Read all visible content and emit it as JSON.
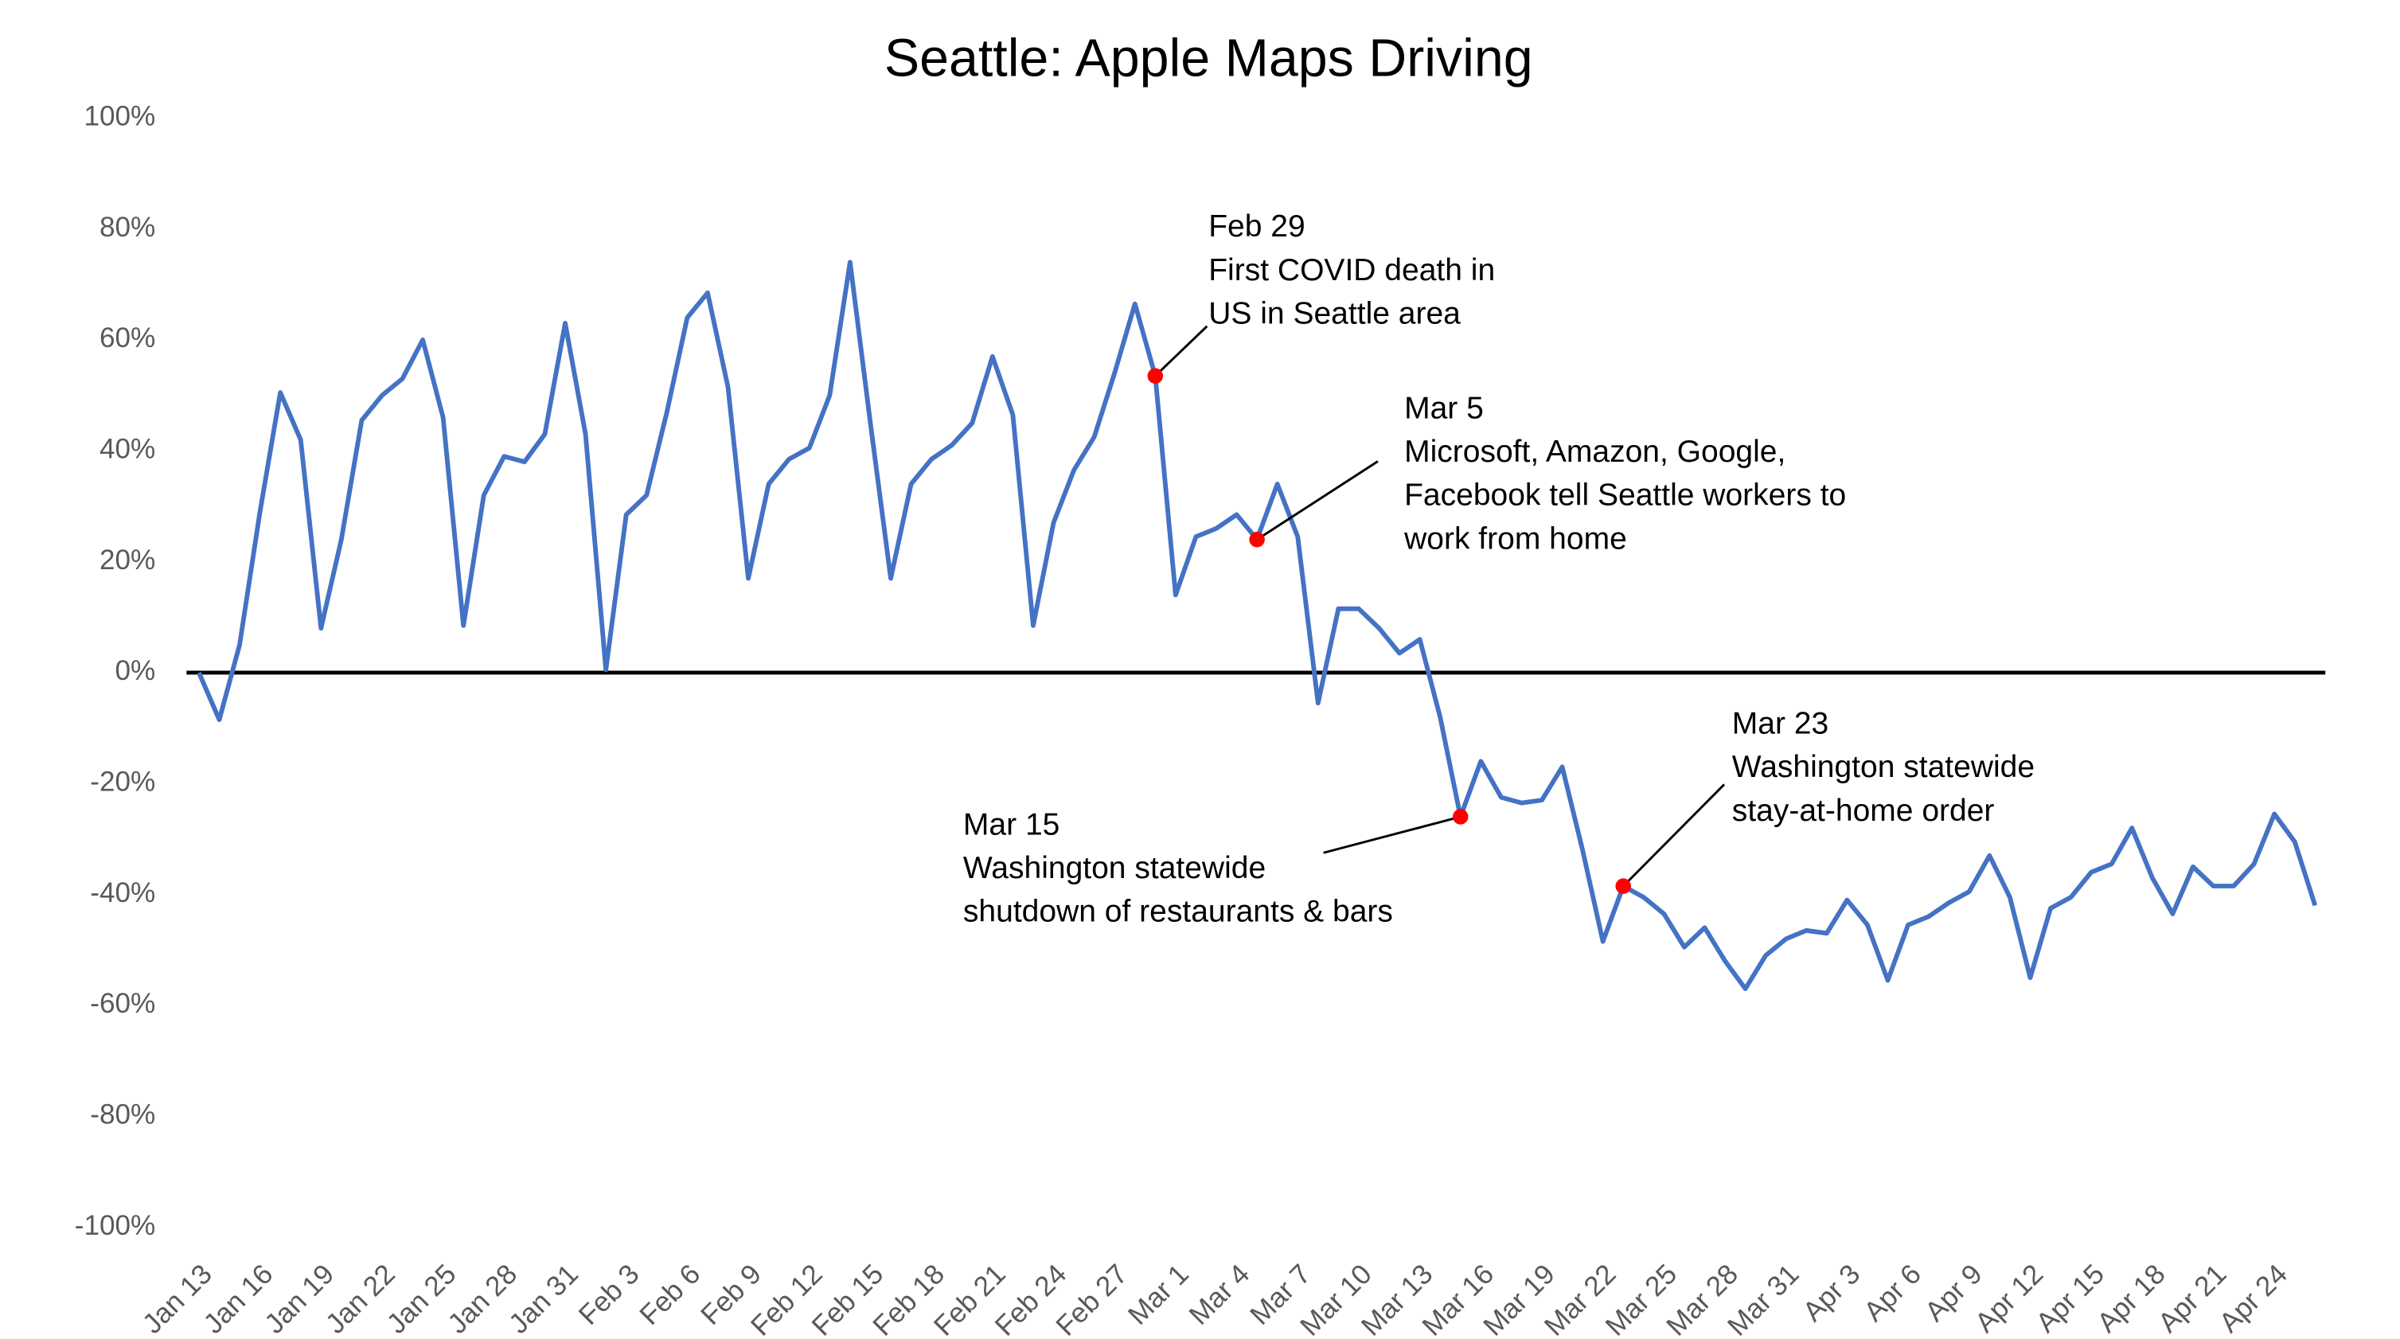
{
  "chart_data": {
    "type": "line",
    "title": "Seattle: Apple Maps Driving",
    "categories": [
      "Jan 13",
      null,
      null,
      "Jan 16",
      null,
      null,
      "Jan 19",
      null,
      null,
      "Jan 22",
      null,
      null,
      "Jan 25",
      null,
      null,
      "Jan 28",
      null,
      null,
      "Jan 31",
      null,
      null,
      "Feb 3",
      null,
      null,
      "Feb 6",
      null,
      null,
      "Feb 9",
      null,
      null,
      "Feb 12",
      null,
      null,
      "Feb 15",
      null,
      null,
      "Feb 18",
      null,
      null,
      "Feb 21",
      null,
      null,
      "Feb 24",
      null,
      null,
      "Feb 27",
      null,
      null,
      "Mar 1",
      null,
      null,
      "Mar 4",
      null,
      null,
      "Mar 7",
      null,
      null,
      "Mar 10",
      null,
      null,
      "Mar 13",
      null,
      null,
      "Mar 16",
      null,
      null,
      "Mar 19",
      null,
      null,
      "Mar 22",
      null,
      null,
      "Mar 25",
      null,
      null,
      "Mar 28",
      null,
      null,
      "Mar 31",
      null,
      null,
      "Apr 3",
      null,
      null,
      "Apr 6",
      null,
      null,
      "Apr 9",
      null,
      null,
      "Apr 12",
      null,
      null,
      "Apr 15",
      null,
      null,
      "Apr 18",
      null,
      null,
      "Apr 21",
      null,
      null,
      "Apr 24",
      null,
      null
    ],
    "values": [
      0,
      -8.5,
      5,
      29,
      50.5,
      42,
      8,
      24,
      45.5,
      50,
      53,
      60,
      46,
      8.5,
      32,
      39,
      38,
      43,
      63,
      43,
      0.5,
      28.5,
      32,
      47,
      64,
      68.5,
      51.5,
      17,
      34,
      38.5,
      40.5,
      50,
      74,
      45,
      17,
      34,
      38.5,
      41,
      45,
      57,
      46.5,
      8.5,
      27,
      36.5,
      42.5,
      54,
      66.5,
      53.5,
      14,
      24.5,
      26,
      28.5,
      24,
      34,
      24.5,
      -5.5,
      11.5,
      11.5,
      8,
      3.5,
      6,
      -8,
      -26,
      -16,
      -22.5,
      -23.5,
      -23,
      -17,
      -32,
      -48.5,
      -38.5,
      -40.5,
      -43.5,
      -49.5,
      -46,
      -52,
      -57,
      -51,
      -48,
      -46.5,
      -47,
      -41,
      -45.5,
      -55.5,
      -45.5,
      -44,
      -41.5,
      -39.5,
      -33,
      -40.5,
      -55,
      -42.5,
      -40.5,
      -36,
      -34.5,
      -28,
      -37,
      -43.5,
      -35,
      -38.5,
      -38.5,
      -34.5,
      -25.5,
      -30.5,
      -42
    ],
    "color": "#4472c4",
    "ylim": [
      -100,
      100
    ],
    "yticks": [
      {
        "value": -100,
        "label": "-100%"
      },
      {
        "value": -80,
        "label": "-80%"
      },
      {
        "value": -60,
        "label": "-60%"
      },
      {
        "value": -40,
        "label": "-40%"
      },
      {
        "value": -20,
        "label": "-20%"
      },
      {
        "value": 0,
        "label": "0%"
      },
      {
        "value": 20,
        "label": "20%"
      },
      {
        "value": 40,
        "label": "40%"
      },
      {
        "value": 60,
        "label": "60%"
      },
      {
        "value": 80,
        "label": "80%"
      },
      {
        "value": 100,
        "label": "100%"
      }
    ],
    "grid": false,
    "annotations": [
      {
        "lines": [
          "Feb 29",
          "First COVID death in",
          "US in Seattle area"
        ],
        "color": "#ff0000"
      },
      {
        "lines": [
          "Mar 5",
          "Microsoft, Amazon, Google,",
          "Facebook tell Seattle workers to",
          "work from home"
        ],
        "color": "#ff0000"
      },
      {
        "lines": [
          "Mar 15",
          "Washington statewide",
          "shutdown of restaurants & bars"
        ],
        "color": "#ff0000"
      },
      {
        "lines": [
          "Mar 23",
          "Washington statewide",
          "stay-at-home order"
        ],
        "color": "#ff0000"
      }
    ]
  }
}
